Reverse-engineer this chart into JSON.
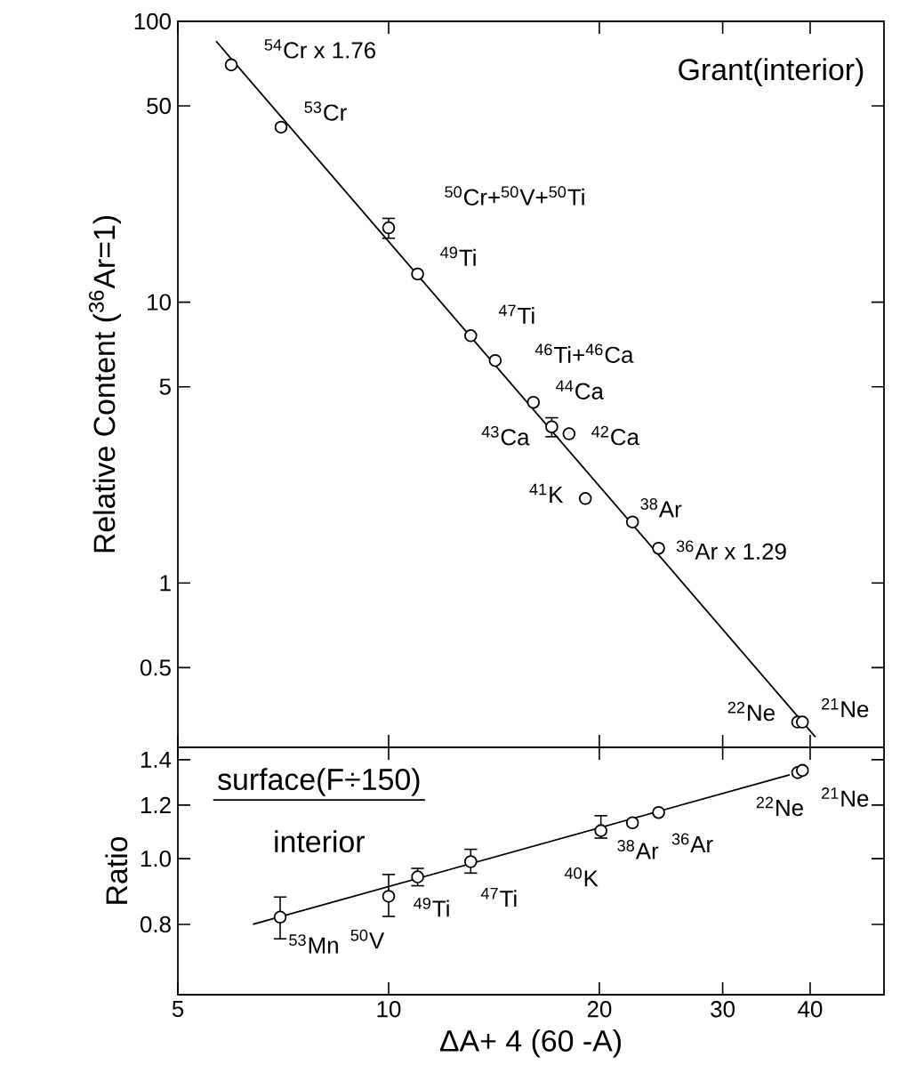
{
  "chart_data": [
    {
      "type": "scatter",
      "ylabel": "Relative Content ($^{36}$Ar=1)",
      "log": "xy",
      "xlim": [
        5,
        51
      ],
      "ylim": [
        0.26,
        100
      ],
      "xticks": [
        5,
        10,
        20,
        30,
        40
      ],
      "yticks": [
        0.5,
        1,
        5,
        10,
        50,
        100
      ],
      "tick_labels": "y",
      "series": [
        {
          "marker": "circle",
          "color": "#000000",
          "x": [
            5.96,
            7.02,
            10.0,
            11.0,
            13.1,
            14.2,
            16.1,
            17.1,
            18.1,
            19.1,
            22.3,
            24.3,
            38.4,
            39.0
          ],
          "values": [
            70,
            42,
            18.4,
            12.6,
            7.6,
            6.2,
            4.4,
            3.6,
            3.4,
            2.0,
            1.65,
            1.33,
            0.32,
            0.32
          ],
          "errors": [
            null,
            null,
            [
              16.8,
              20
            ],
            null,
            null,
            null,
            null,
            [
              3.3,
              3.9
            ],
            null,
            null,
            null,
            null,
            null,
            null
          ]
        },
        {
          "type": "line",
          "marker": "none",
          "color": "#000000",
          "x": [
            5.67,
            40.7
          ],
          "values": [
            85,
            0.283
          ]
        }
      ],
      "annotations": [
        {
          "text": "$^{54}$Cr x 1.76",
          "x": 5.96,
          "y": 70
        },
        {
          "text": "$^{53}$Cr",
          "x": 7.02,
          "y": 42
        },
        {
          "text": "$^{50}$Cr+$^{50}$V+$^{50}$Ti",
          "x": 10.0,
          "y": 18.4
        },
        {
          "text": "$^{49}$Ti",
          "x": 11.0,
          "y": 12.6
        },
        {
          "text": "$^{47}$Ti",
          "x": 13.1,
          "y": 7.6
        },
        {
          "text": "$^{46}$Ti+$^{46}$Ca",
          "x": 14.2,
          "y": 6.2
        },
        {
          "text": "$^{44}$Ca",
          "x": 16.1,
          "y": 4.4
        },
        {
          "text": "$^{43}$Ca",
          "x": 17.1,
          "y": 3.6
        },
        {
          "text": "$^{42}$Ca",
          "x": 18.1,
          "y": 3.4
        },
        {
          "text": "$^{41}$K",
          "x": 19.1,
          "y": 2.0
        },
        {
          "text": "$^{38}$Ar",
          "x": 22.3,
          "y": 1.65
        },
        {
          "text": "$^{36}$Ar x 1.29",
          "x": 24.3,
          "y": 1.33
        },
        {
          "text": "$^{22}$Ne",
          "x": 38.4,
          "y": 0.32
        },
        {
          "text": "$^{21}$Ne",
          "x": 39.0,
          "y": 0.32
        },
        "Grant(interior)"
      ]
    },
    {
      "type": "scatter",
      "xlabel": "ΔA+ 4 (60 -A)",
      "ylabel": "Ratio",
      "log": "xy",
      "xlim": [
        5,
        51
      ],
      "ylim": [
        0.63,
        1.46
      ],
      "xticks": [
        5,
        10,
        20,
        30,
        40
      ],
      "yticks": [
        0.8,
        {
          "value": 1,
          "label": "1.0"
        },
        1.2,
        1.4
      ],
      "series": [
        {
          "marker": "circle",
          "color": "#000000",
          "x": [
            7.0,
            10.0,
            11.0,
            13.1,
            20.1,
            22.3,
            24.3,
            38.4,
            39.0
          ],
          "values": [
            0.82,
            0.88,
            0.94,
            0.99,
            1.1,
            1.13,
            1.17,
            1.34,
            1.35
          ],
          "errors": [
            [
              0.76,
              0.88
            ],
            [
              0.82,
              0.95
            ],
            [
              0.91,
              0.97
            ],
            [
              0.95,
              1.035
            ],
            [
              1.07,
              1.16
            ],
            null,
            null,
            null,
            null
          ]
        },
        {
          "type": "line",
          "marker": "none",
          "color": "#000000",
          "x": [
            6.4,
            37.4
          ],
          "values": [
            0.8,
            1.33
          ]
        }
      ],
      "annotations": [
        {
          "text": "$^{53}$Mn",
          "x": 7.0,
          "y": 0.82
        },
        {
          "text": "$^{50}$V",
          "x": 10.0,
          "y": 0.88
        },
        {
          "text": "$^{49}$Ti",
          "x": 11.0,
          "y": 0.94
        },
        {
          "text": "$^{47}$Ti",
          "x": 13.1,
          "y": 0.99
        },
        {
          "text": "$^{40}$K",
          "x": 20.1,
          "y": 1.1
        },
        {
          "text": "$^{38}$Ar",
          "x": 22.3,
          "y": 1.13
        },
        {
          "text": "$^{36}$Ar",
          "x": 24.3,
          "y": 1.17
        },
        {
          "text": "$^{22}$Ne",
          "x": 38.4,
          "y": 1.34
        },
        {
          "text": "$^{21}$Ne",
          "x": 39.0,
          "y": 1.35
        },
        "surface(F÷150)",
        "interior"
      ]
    }
  ]
}
